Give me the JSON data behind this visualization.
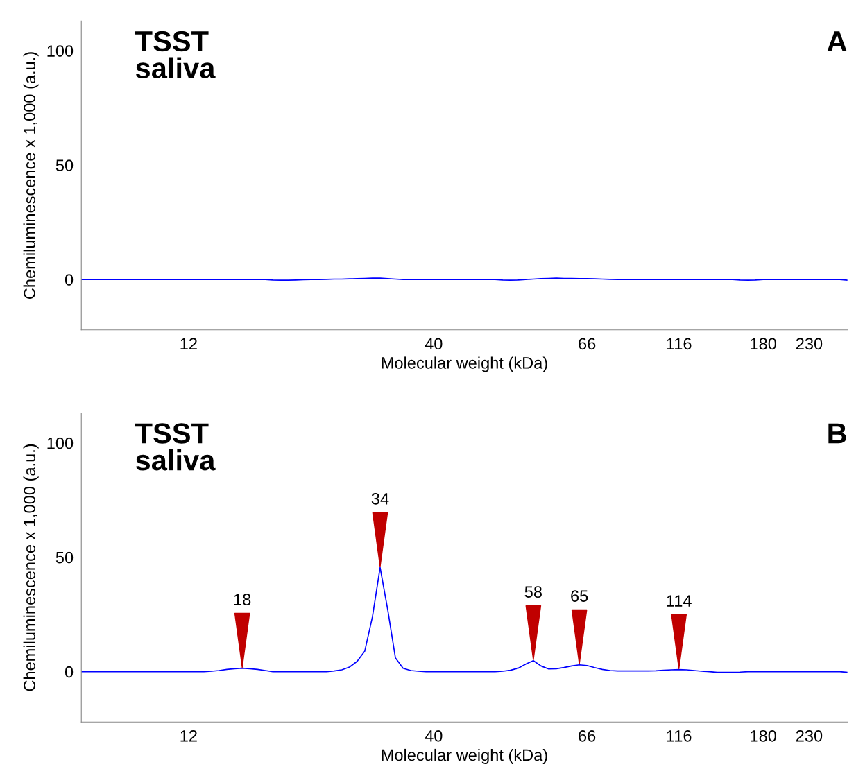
{
  "chart_data": [
    {
      "type": "line",
      "title": "TSST\nsaliva",
      "xlabel": "Molecular weight (kDa)",
      "ylabel": "Chemiluminescence x 1,000 (a.u.)",
      "annotations": [
        "A"
      ],
      "categories": [
        null,
        null,
        null,
        null,
        null,
        null,
        null,
        null,
        null,
        null,
        null,
        null,
        null,
        null,
        "12",
        null,
        null,
        null,
        null,
        null,
        null,
        null,
        null,
        null,
        null,
        null,
        null,
        null,
        null,
        null,
        null,
        null,
        null,
        null,
        null,
        null,
        null,
        null,
        null,
        null,
        null,
        null,
        null,
        null,
        null,
        null,
        "40",
        null,
        null,
        null,
        null,
        null,
        null,
        null,
        null,
        null,
        null,
        null,
        null,
        null,
        null,
        null,
        null,
        null,
        null,
        null,
        "66",
        null,
        null,
        null,
        null,
        null,
        null,
        null,
        null,
        null,
        null,
        null,
        "116",
        null,
        null,
        null,
        null,
        null,
        null,
        null,
        null,
        null,
        null,
        "180",
        null,
        null,
        null,
        null,
        null,
        "230",
        null,
        null,
        null,
        null,
        null
      ],
      "series": [
        {
          "color": "#0000ff",
          "values": [
            0,
            0,
            0,
            0,
            0,
            0,
            0,
            0,
            0,
            0,
            0,
            0,
            0,
            0,
            0,
            0,
            0,
            0,
            0,
            0,
            0,
            0,
            0,
            0,
            0,
            -0.2,
            -0.3,
            -0.3,
            -0.2,
            -0.1,
            0,
            0,
            0.1,
            0.2,
            0.2,
            0.3,
            0.4,
            0.5,
            0.6,
            0.6,
            0.4,
            0.2,
            0,
            0,
            0,
            0,
            0,
            0,
            0,
            0,
            0,
            0,
            0,
            0,
            0,
            -0.2,
            -0.3,
            -0.2,
            0,
            0.2,
            0.4,
            0.5,
            0.6,
            0.5,
            0.5,
            0.4,
            0.4,
            0.3,
            0.2,
            0.1,
            0,
            0,
            0,
            0,
            0,
            0,
            0,
            0,
            0,
            0,
            0,
            0,
            0,
            0,
            0,
            0,
            -0.2,
            -0.3,
            -0.2,
            0,
            0,
            0,
            0,
            0,
            0,
            0,
            0,
            0,
            0,
            0,
            -0.3
          ]
        }
      ],
      "ylim": [
        -22,
        113
      ],
      "yticks": [
        0,
        50,
        100
      ],
      "grid": false,
      "legend": false
    },
    {
      "type": "line",
      "title": "TSST\nsaliva",
      "xlabel": "Molecular weight (kDa)",
      "ylabel": "Chemiluminescence x 1,000 (a.u.)",
      "annotations": [
        "B",
        "18",
        "34",
        "58",
        "65",
        "114"
      ],
      "categories": [
        null,
        null,
        null,
        null,
        null,
        null,
        null,
        null,
        null,
        null,
        null,
        null,
        null,
        null,
        "12",
        null,
        null,
        null,
        null,
        null,
        null,
        null,
        null,
        null,
        null,
        null,
        null,
        null,
        null,
        null,
        null,
        null,
        null,
        null,
        null,
        null,
        null,
        null,
        null,
        null,
        null,
        null,
        null,
        null,
        null,
        null,
        "40",
        null,
        null,
        null,
        null,
        null,
        null,
        null,
        null,
        null,
        null,
        null,
        null,
        null,
        null,
        null,
        null,
        null,
        null,
        null,
        "66",
        null,
        null,
        null,
        null,
        null,
        null,
        null,
        null,
        null,
        null,
        null,
        "116",
        null,
        null,
        null,
        null,
        null,
        null,
        null,
        null,
        null,
        null,
        "180",
        null,
        null,
        null,
        null,
        null,
        "230",
        null,
        null,
        null,
        null,
        null
      ],
      "series": [
        {
          "color": "#0000ff",
          "values": [
            0,
            0,
            0,
            0,
            0,
            0,
            0,
            0,
            0,
            0,
            0,
            0,
            0,
            0,
            0,
            0,
            0,
            0.2,
            0.5,
            1,
            1.3,
            1.5,
            1.3,
            1.0,
            0.5,
            0,
            0,
            0,
            0,
            0,
            0,
            0,
            0,
            0.3,
            0.8,
            2,
            4.5,
            9,
            24,
            45.5,
            27,
            6,
            1.5,
            0.5,
            0.2,
            0,
            0,
            0,
            0,
            0,
            0,
            0,
            0,
            0,
            0,
            0.2,
            0.6,
            1.5,
            3.3,
            4.8,
            2.5,
            1.2,
            1.3,
            1.8,
            2.5,
            3,
            2.7,
            1.8,
            1,
            0.5,
            0.3,
            0.3,
            0.3,
            0.3,
            0.3,
            0.4,
            0.6,
            0.8,
            0.9,
            0.8,
            0.5,
            0.2,
            0,
            -0.3,
            -0.3,
            -0.3,
            -0.2,
            0,
            0,
            0,
            0,
            0,
            0,
            0,
            0,
            0,
            0,
            0,
            0,
            0,
            -0.3
          ]
        }
      ],
      "ylim": [
        -22,
        113
      ],
      "yticks": [
        0,
        50,
        100
      ],
      "grid": false,
      "legend": false
    }
  ]
}
